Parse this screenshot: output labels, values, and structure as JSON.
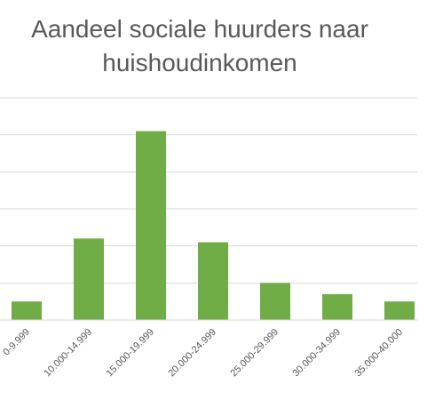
{
  "chart_data": {
    "type": "bar",
    "title": "Aandeel sociale huurders naar huishoudinkomen",
    "categories": [
      "0-9.999",
      "10.000-14.999",
      "15.000-19.999",
      "20.000-24.999",
      "25.000-29.999",
      "30.000-34.999",
      "35.000-40.000"
    ],
    "values": [
      2.5,
      11.0,
      25.5,
      10.5,
      5.0,
      3.5,
      2.5
    ],
    "xlabel": "",
    "ylabel": "",
    "ylim": [
      0,
      30
    ],
    "grid": true,
    "legend": "none",
    "bar_color": "#70ad47",
    "grid_color": "#d9d9d9",
    "text_color": "#595959"
  }
}
